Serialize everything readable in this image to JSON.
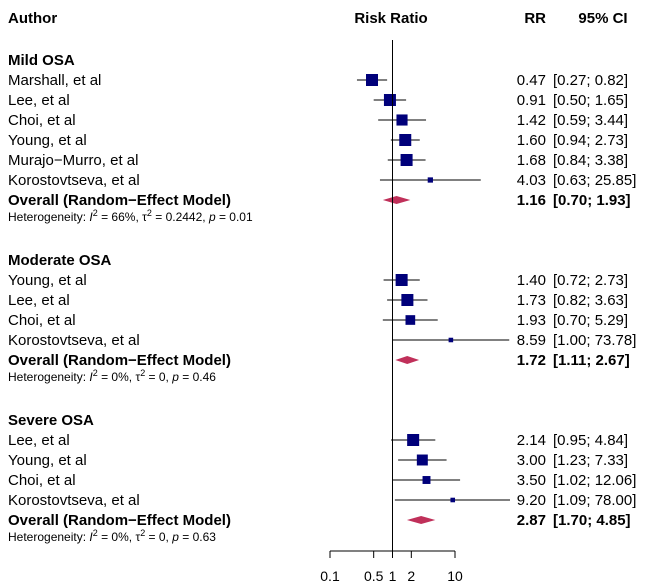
{
  "chart_data": {
    "type": "forest",
    "title": "",
    "columns": {
      "author": "Author",
      "plot": "Risk Ratio",
      "rr": "RR",
      "ci": "95% CI"
    },
    "x_scale": "log",
    "xlim": [
      0.1,
      10
    ],
    "x_ticks": [
      {
        "value": 0.1,
        "label": "0.1"
      },
      {
        "value": 0.5,
        "label": "0.5"
      },
      {
        "value": 1,
        "label": "1"
      },
      {
        "value": 2,
        "label": "2"
      },
      {
        "value": 10,
        "label": "10"
      }
    ],
    "reference_line": 1,
    "colors": {
      "study": "#00007a",
      "summary": "#c0305a",
      "line": "#000000"
    },
    "groups": [
      {
        "name": "Mild OSA",
        "studies": [
          {
            "author": "Marshall, et al",
            "rr": 0.47,
            "lower": 0.27,
            "upper": 0.82,
            "rr_text": "0.47",
            "ci_text": "[0.27;  0.82]"
          },
          {
            "author": "Lee, et al",
            "rr": 0.91,
            "lower": 0.5,
            "upper": 1.65,
            "rr_text": "0.91",
            "ci_text": "[0.50;  1.65]"
          },
          {
            "author": "Choi, et al",
            "rr": 1.42,
            "lower": 0.59,
            "upper": 3.44,
            "rr_text": "1.42",
            "ci_text": "[0.59;  3.44]"
          },
          {
            "author": "Young, et al",
            "rr": 1.6,
            "lower": 0.94,
            "upper": 2.73,
            "rr_text": "1.60",
            "ci_text": "[0.94;  2.73]"
          },
          {
            "author": "Murajo−Murro, et al",
            "rr": 1.68,
            "lower": 0.84,
            "upper": 3.38,
            "rr_text": "1.68",
            "ci_text": "[0.84;  3.38]"
          },
          {
            "author": "Korostovtseva, et al",
            "rr": 4.03,
            "lower": 0.63,
            "upper": 25.85,
            "rr_text": "4.03",
            "ci_text": "[0.63; 25.85]"
          }
        ],
        "overall": {
          "label": "Overall (Random−Effect Model)",
          "rr": 1.16,
          "lower": 0.7,
          "upper": 1.93,
          "rr_text": "1.16",
          "ci_text": "[0.70;  1.93]"
        },
        "heterogeneity": {
          "prefix": "Heterogeneity: ",
          "i2_symbol": "I",
          "i2_value": " = 66%, ",
          "tau_symbol": "τ",
          "tau_value": " = 0.2442, ",
          "p_symbol": "p",
          "p_value": " = 0.01"
        }
      },
      {
        "name": "Moderate OSA",
        "studies": [
          {
            "author": "Young, et al",
            "rr": 1.4,
            "lower": 0.72,
            "upper": 2.73,
            "rr_text": "1.40",
            "ci_text": "[0.72;  2.73]"
          },
          {
            "author": "Lee, et al",
            "rr": 1.73,
            "lower": 0.82,
            "upper": 3.63,
            "rr_text": "1.73",
            "ci_text": "[0.82;  3.63]"
          },
          {
            "author": "Choi, et al",
            "rr": 1.93,
            "lower": 0.7,
            "upper": 5.29,
            "rr_text": "1.93",
            "ci_text": "[0.70;  5.29]"
          },
          {
            "author": "Korostovtseva, et al",
            "rr": 8.59,
            "lower": 1.0,
            "upper": 73.78,
            "rr_text": "8.59",
            "ci_text": "[1.00; 73.78]"
          }
        ],
        "overall": {
          "label": "Overall (Random−Effect Model)",
          "rr": 1.72,
          "lower": 1.11,
          "upper": 2.67,
          "rr_text": "1.72",
          "ci_text": "[1.11;  2.67]"
        },
        "heterogeneity": {
          "prefix": "Heterogeneity: ",
          "i2_symbol": "I",
          "i2_value": " = 0%, ",
          "tau_symbol": "τ",
          "tau_value": " = 0, ",
          "p_symbol": "p",
          "p_value": " = 0.46"
        }
      },
      {
        "name": "Severe OSA",
        "studies": [
          {
            "author": "Lee, et al",
            "rr": 2.14,
            "lower": 0.95,
            "upper": 4.84,
            "rr_text": "2.14",
            "ci_text": "[0.95;  4.84]"
          },
          {
            "author": "Young, et al",
            "rr": 3.0,
            "lower": 1.23,
            "upper": 7.33,
            "rr_text": "3.00",
            "ci_text": "[1.23;  7.33]"
          },
          {
            "author": "Choi, et al",
            "rr": 3.5,
            "lower": 1.02,
            "upper": 12.06,
            "rr_text": "3.50",
            "ci_text": "[1.02; 12.06]"
          },
          {
            "author": "Korostovtseva, et al",
            "rr": 9.2,
            "lower": 1.09,
            "upper": 78.0,
            "rr_text": "9.20",
            "ci_text": "[1.09; 78.00]"
          }
        ],
        "overall": {
          "label": "Overall (Random−Effect Model)",
          "rr": 2.87,
          "lower": 1.7,
          "upper": 4.85,
          "rr_text": "2.87",
          "ci_text": "[1.70;  4.85]"
        },
        "heterogeneity": {
          "prefix": "Heterogeneity: ",
          "i2_symbol": "I",
          "i2_value": " = 0%, ",
          "tau_symbol": "τ",
          "tau_value": " = 0, ",
          "p_symbol": "p",
          "p_value": " = 0.63"
        }
      }
    ]
  }
}
